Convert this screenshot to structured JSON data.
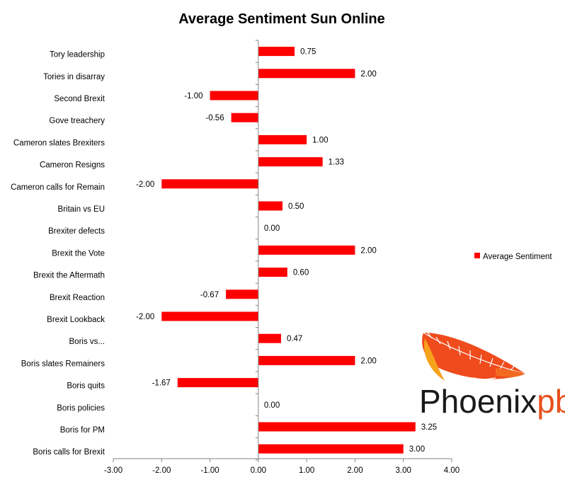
{
  "chart_data": {
    "type": "bar",
    "orientation": "horizontal",
    "title": "Average Sentiment Sun Online",
    "categories": [
      "Tory leadership",
      "Tories in disarray",
      "Second Brexit",
      "Gove treachery",
      "Cameron slates Brexiters",
      "Cameron Resigns",
      "Cameron calls for Remain",
      "Britain vs EU",
      "Brexiter defects",
      "Brexit the Vote",
      "Brexit the Aftermath",
      "Brexit Reaction",
      "Brexit Lookback",
      "Boris vs...",
      "Boris slates Remainers",
      "Boris quits",
      "Boris policies",
      "Boris for PM",
      "Boris calls for Brexit"
    ],
    "series": [
      {
        "name": "Average Sentiment",
        "color": "#ff0000",
        "values": [
          0.75,
          2.0,
          -1.0,
          -0.56,
          1.0,
          1.33,
          -2.0,
          0.5,
          0.0,
          2.0,
          0.6,
          -0.67,
          -2.0,
          0.47,
          2.0,
          -1.67,
          0.0,
          3.25,
          3.0
        ],
        "value_labels": [
          "0.75",
          "2.00",
          "-1.00",
          "-0.56",
          "1.00",
          "1.33",
          "-2.00",
          "0.50",
          "0.00",
          "2.00",
          "0.60",
          "-0.67",
          "-2.00",
          "0.47",
          "2.00",
          "-1.67",
          "0.00",
          "3.25",
          "3.00"
        ]
      }
    ],
    "xlim": [
      -3,
      4
    ],
    "x_ticks": [
      "-3.00",
      "-2.00",
      "-1.00",
      "0.00",
      "1.00",
      "2.00",
      "3.00",
      "4.00"
    ],
    "grid": false,
    "legend": "right"
  },
  "logo": {
    "text_main": "Phoenix",
    "text_accent": "pb",
    "main_color": "#1a1a1a",
    "accent_color": "#e8501c"
  }
}
